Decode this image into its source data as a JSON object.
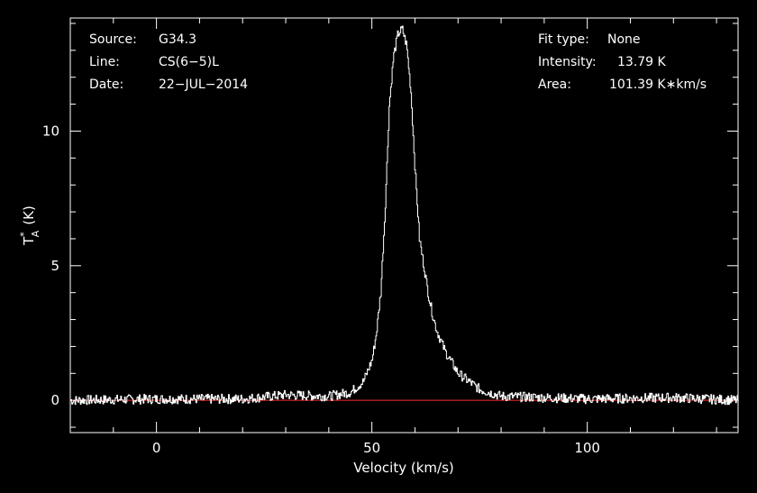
{
  "chart_data": {
    "type": "line",
    "title": "",
    "xlabel": "Velocity (km/s)",
    "ylabel_main": "T",
    "ylabel_sup": "*",
    "ylabel_sub": "A",
    "ylabel_unit": "(K)",
    "xlim": [
      -20,
      135
    ],
    "ylim": [
      -1.2,
      14.2
    ],
    "xticks": [
      0,
      50,
      100
    ],
    "xtick_labels": [
      "0",
      "50",
      "100"
    ],
    "yticks": [
      0,
      5,
      10
    ],
    "ytick_labels": [
      "0",
      "5",
      "10"
    ],
    "grid": false,
    "baseline": 0,
    "baseline_color": "#ff2a2a",
    "line_color": "#ffffff",
    "background": "#000000",
    "series": [
      {
        "x": [
          -20,
          0,
          20,
          30,
          40,
          45,
          48,
          50,
          51,
          52,
          53,
          54,
          55,
          56,
          57,
          58,
          59,
          60,
          61,
          62,
          63,
          64,
          65,
          67,
          70,
          75,
          80,
          100,
          120,
          135
        ],
        "y": [
          0.0,
          0.05,
          0.05,
          0.2,
          0.15,
          0.3,
          0.7,
          1.5,
          2.5,
          4.0,
          7.0,
          11.0,
          12.8,
          13.6,
          13.79,
          13.2,
          11.5,
          8.5,
          6.0,
          5.0,
          4.0,
          3.2,
          2.6,
          1.8,
          1.0,
          0.4,
          0.15,
          0.05,
          0.1,
          0.0
        ]
      }
    ]
  },
  "info": {
    "source_label": "Source:",
    "source_value": "G34.3",
    "line_label": "Line:",
    "line_value": "CS(6−5)L",
    "date_label": "Date:",
    "date_value": "22−JUL−2014",
    "fit_label": "Fit type:",
    "fit_value": "None",
    "intensity_label": "Intensity:",
    "intensity_value": "13.79 K",
    "area_label": "Area:",
    "area_value": "101.39 K∗km/s"
  }
}
